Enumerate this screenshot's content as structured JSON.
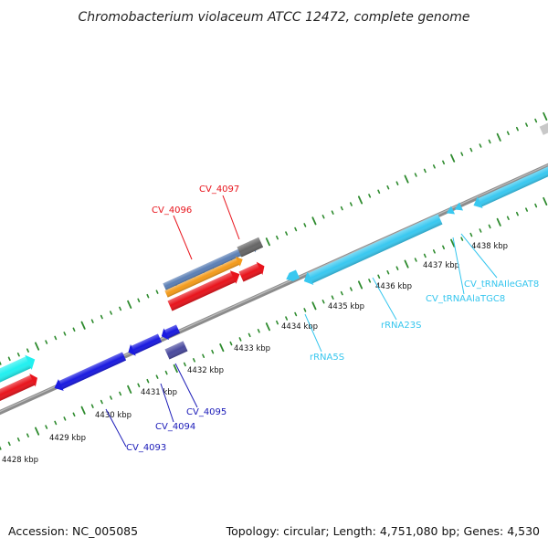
{
  "title": "Chromobacterium violaceum ATCC 12472, complete genome",
  "footer": {
    "accession": "Accession: NC_005085",
    "summary": "Topology: circular; Length: 4,751,080 bp; Genes: 4,530"
  },
  "kbp_labels": [
    "4428 kbp",
    "4429 kbp",
    "4430 kbp",
    "4431 kbp",
    "4432 kbp",
    "4433 kbp",
    "4434 kbp",
    "4435 kbp",
    "4436 kbp",
    "4437 kbp",
    "4438 kbp"
  ],
  "gene_labels": [
    {
      "id": "cv4097",
      "text": "CV_4097",
      "color": "#e8141c"
    },
    {
      "id": "cv4096",
      "text": "CV_4096",
      "color": "#e8141c"
    },
    {
      "id": "cv4093",
      "text": "CV_4093",
      "color": "#1a1ab8"
    },
    {
      "id": "cv4094",
      "text": "CV_4094",
      "color": "#1a1ab8"
    },
    {
      "id": "cv4095",
      "text": "CV_4095",
      "color": "#1a1ab8"
    },
    {
      "id": "rrna5s",
      "text": "rRNA5S",
      "color": "#36c6ee"
    },
    {
      "id": "rrna23s",
      "text": "rRNA23S",
      "color": "#36c6ee"
    },
    {
      "id": "trnaala",
      "text": "CV_tRNAAlaTGC8",
      "color": "#36c6ee"
    },
    {
      "id": "trnaile",
      "text": "CV_tRNAIleGAT8",
      "color": "#36c6ee"
    }
  ],
  "colors": {
    "backbone": "#8c8c8c",
    "ticks": "#2e8b2e",
    "red": "#e8141c",
    "orange": "#f39a1a",
    "steel": "#5b7fb5",
    "gray": "#6b6b6b",
    "blue": "#1a1ae0",
    "navy": "#4a4a9e",
    "cyan": "#39c8f0",
    "aqua": "#22f0f0"
  }
}
